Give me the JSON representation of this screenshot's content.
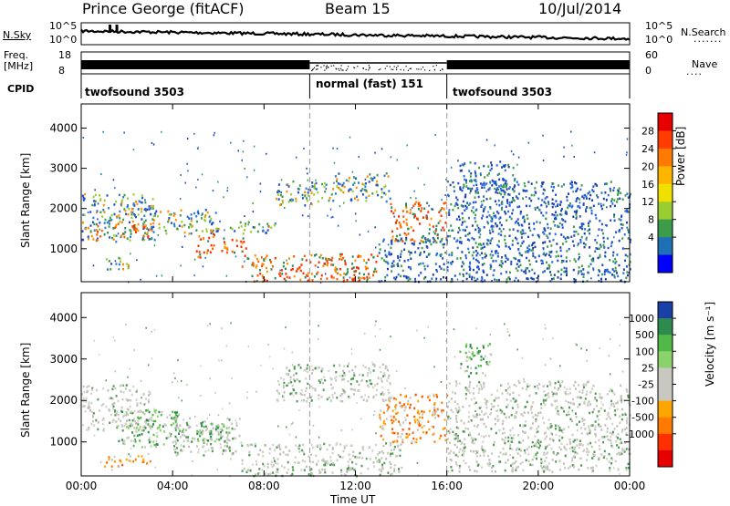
{
  "header": {
    "station": "Prince George (fitACF)",
    "beam": "Beam 15",
    "date": "10/Jul/2014"
  },
  "noise_panel": {
    "left_label": "N.Sky",
    "right_label": "N.Search",
    "left_ticks": [
      "10^5",
      "10^0"
    ],
    "right_ticks": [
      "10^5",
      "10^0"
    ]
  },
  "freq_panel": {
    "left_label_1": "Freq.",
    "left_label_2": "[MHz]",
    "left_ticks": [
      "18",
      "8"
    ],
    "right_ticks": [
      "60",
      "0"
    ],
    "right_label": "Nave"
  },
  "cpid": {
    "label": "CPID",
    "segments": [
      {
        "name": "twofsound 3503",
        "start": 0,
        "end": 10
      },
      {
        "name": "normal (fast) 151",
        "start": 10,
        "end": 16
      },
      {
        "name": "twofsound 3503",
        "start": 16,
        "end": 24
      }
    ]
  },
  "time_axis": {
    "label": "Time UT",
    "ticks": [
      "00:00",
      "04:00",
      "08:00",
      "12:00",
      "16:00",
      "20:00",
      "00:00"
    ],
    "hours": [
      0,
      4,
      8,
      12,
      16,
      20,
      24
    ]
  },
  "chart_data": [
    {
      "type": "heatmap",
      "ylabel": "Slant Range [km]",
      "yticks": [
        1000,
        2000,
        3000,
        4000
      ],
      "ylim": [
        180,
        4600
      ],
      "xlim_hours": [
        0,
        24
      ],
      "colorbar_label": "Power [dB]",
      "colorbar_ticks": [
        "28",
        "24",
        "20",
        "16",
        "12",
        "8",
        "4"
      ],
      "colorbar_colors": [
        "#e60000",
        "#ff3b00",
        "#ff7a00",
        "#ffb400",
        "#f0e000",
        "#9acd32",
        "#3c9c4a",
        "#1f6fb5",
        "#0000ff"
      ],
      "regions": [
        {
          "t0": 0.0,
          "t1": 3.2,
          "r0": 1200,
          "r1": 2400,
          "level": "mid"
        },
        {
          "t0": 0.6,
          "t1": 3.0,
          "r0": 1300,
          "r1": 1650,
          "level": "high"
        },
        {
          "t0": 1.0,
          "t1": 2.2,
          "r0": 500,
          "r1": 800,
          "level": "mid"
        },
        {
          "t0": 3.0,
          "t1": 6.0,
          "r0": 1400,
          "r1": 2000,
          "level": "mid"
        },
        {
          "t0": 5.0,
          "t1": 5.8,
          "r0": 800,
          "r1": 1500,
          "level": "high"
        },
        {
          "t0": 6.0,
          "t1": 7.2,
          "r0": 900,
          "r1": 1300,
          "level": "high"
        },
        {
          "t0": 6.5,
          "t1": 8.5,
          "r0": 1400,
          "r1": 1700,
          "level": "mid"
        },
        {
          "t0": 7.0,
          "t1": 13.0,
          "r0": 200,
          "r1": 900,
          "level": "high"
        },
        {
          "t0": 8.5,
          "t1": 11.0,
          "r0": 2100,
          "r1": 2700,
          "level": "mid"
        },
        {
          "t0": 11.0,
          "t1": 13.5,
          "r0": 2200,
          "r1": 2900,
          "level": "mid"
        },
        {
          "t0": 13.5,
          "t1": 16.0,
          "r0": 1200,
          "r1": 2200,
          "level": "high"
        },
        {
          "t0": 13.0,
          "t1": 24.0,
          "r0": 200,
          "r1": 1300,
          "level": "low"
        },
        {
          "t0": 16.0,
          "t1": 24.0,
          "r0": 1300,
          "r1": 2700,
          "level": "low"
        },
        {
          "t0": 16.5,
          "t1": 19.0,
          "r0": 2500,
          "r1": 3200,
          "level": "low"
        }
      ]
    },
    {
      "type": "heatmap",
      "ylabel": "Slant Range [km]",
      "yticks": [
        1000,
        2000,
        3000,
        4000
      ],
      "ylim": [
        180,
        4600
      ],
      "xlim_hours": [
        0,
        24
      ],
      "colorbar_label": "Velocity [m s⁻¹]",
      "colorbar_ticks": [
        "1000",
        "500",
        "100",
        "25",
        "-25",
        "-100",
        "-500",
        "-1000"
      ],
      "colorbar_colors": [
        "#1a3fa6",
        "#2f8a4e",
        "#52b848",
        "#8ad26a",
        "#c8c8c0",
        "#c8c8c0",
        "#ffa500",
        "#ff7a00",
        "#ff3000",
        "#e60000"
      ],
      "regions": [
        {
          "t0": 0.0,
          "t1": 3.0,
          "r0": 1300,
          "r1": 2400,
          "level": "gray"
        },
        {
          "t0": 1.5,
          "t1": 4.5,
          "r0": 900,
          "r1": 1800,
          "level": "green"
        },
        {
          "t0": 1.0,
          "t1": 3.0,
          "r0": 400,
          "r1": 700,
          "level": "orange"
        },
        {
          "t0": 4.0,
          "t1": 7.0,
          "r0": 700,
          "r1": 1600,
          "level": "gray"
        },
        {
          "t0": 5.0,
          "t1": 6.5,
          "r0": 900,
          "r1": 1500,
          "level": "green"
        },
        {
          "t0": 7.0,
          "t1": 14.0,
          "r0": 200,
          "r1": 1000,
          "level": "gray"
        },
        {
          "t0": 8.5,
          "t1": 13.5,
          "r0": 2000,
          "r1": 2900,
          "level": "gray"
        },
        {
          "t0": 13.0,
          "t1": 16.0,
          "r0": 1000,
          "r1": 2200,
          "level": "orange"
        },
        {
          "t0": 16.0,
          "t1": 24.0,
          "r0": 300,
          "r1": 2500,
          "level": "gray"
        },
        {
          "t0": 16.5,
          "t1": 18.0,
          "r0": 2600,
          "r1": 3400,
          "level": "green"
        }
      ]
    }
  ]
}
